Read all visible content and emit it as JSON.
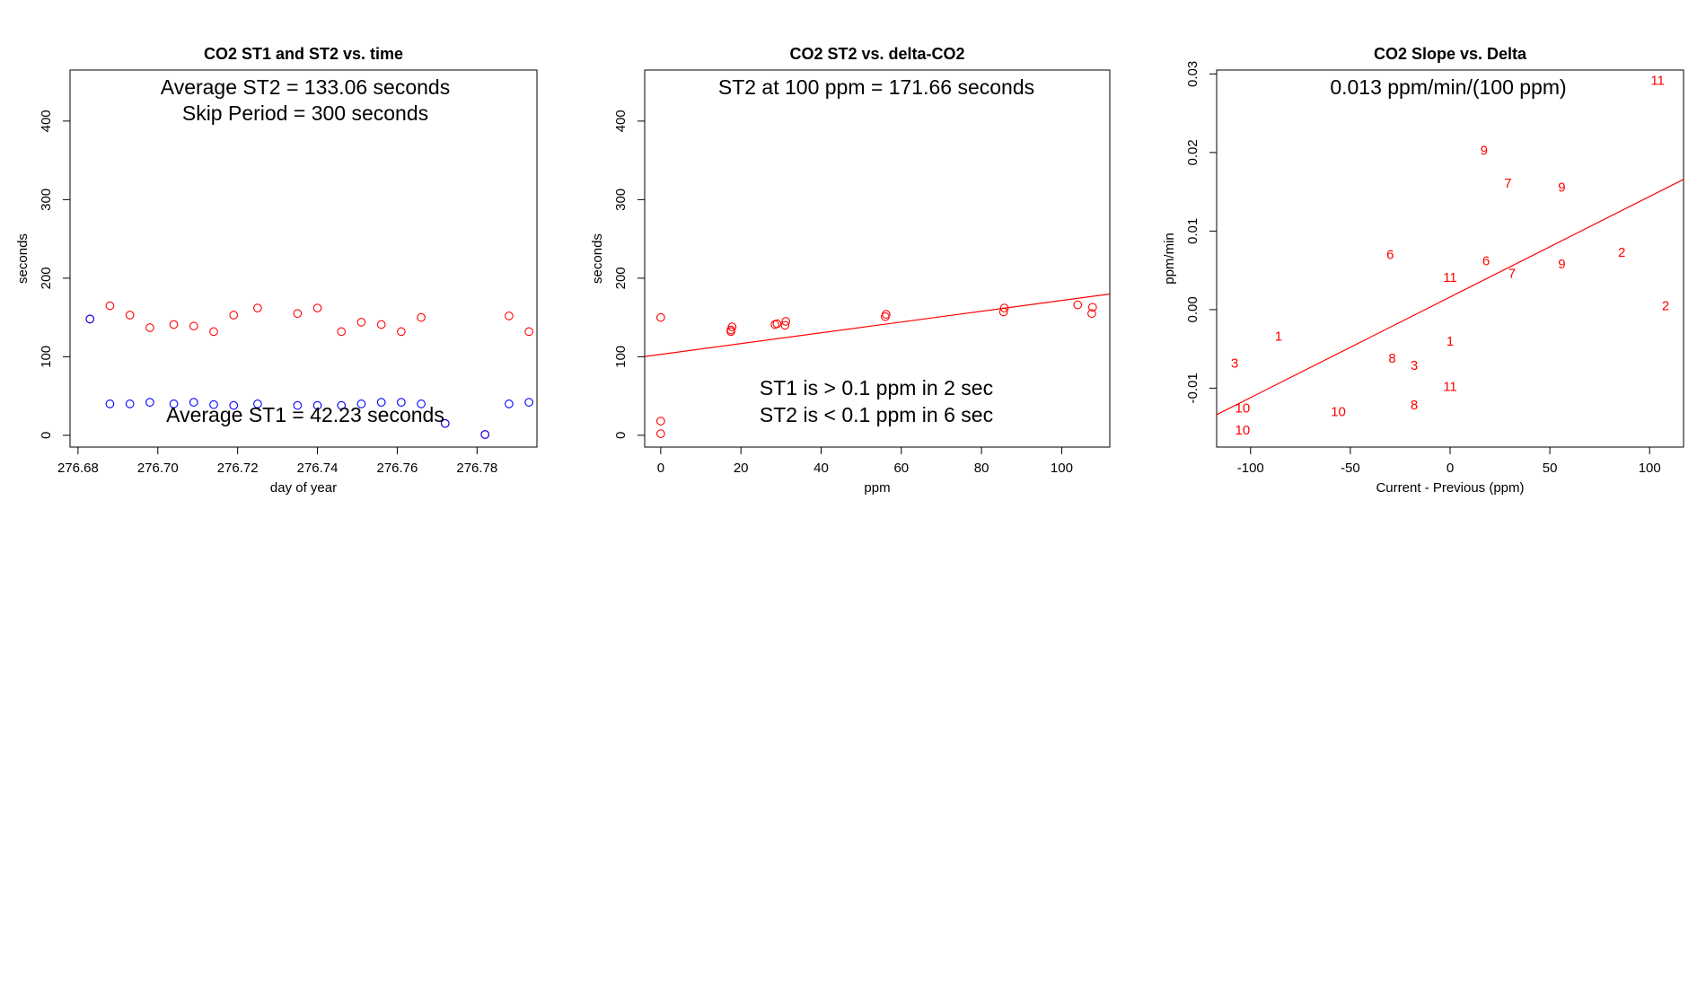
{
  "chart_data": [
    {
      "type": "scatter",
      "title": "CO2 ST1 and ST2 vs. time",
      "xlabel": "day of year",
      "ylabel": "seconds",
      "xlim": [
        276.678,
        276.795
      ],
      "ylim": [
        -15,
        465
      ],
      "xticks": [
        "276.68",
        "276.70",
        "276.72",
        "276.74",
        "276.76",
        "276.78"
      ],
      "yticks": [
        "0",
        "100",
        "200",
        "300",
        "400"
      ],
      "grid": false,
      "annotations": [
        "Average ST2 =  133.06  seconds",
        "Skip Period =  300  seconds",
        "Average ST1 =  42.23  seconds"
      ],
      "series": [
        {
          "color": "#ff0000",
          "x": [
            276.683,
            276.688,
            276.693,
            276.698,
            276.704,
            276.709,
            276.714,
            276.719,
            276.725,
            276.735,
            276.74,
            276.746,
            276.751,
            276.756,
            276.761,
            276.766,
            276.772,
            276.782,
            276.788,
            276.793
          ],
          "y": [
            148,
            165,
            153,
            137,
            141,
            139,
            132,
            153,
            162,
            155,
            162,
            132,
            144,
            141,
            132,
            150,
            15,
            1,
            152,
            132
          ]
        },
        {
          "color": "#0000ff",
          "x": [
            276.683,
            276.688,
            276.693,
            276.698,
            276.704,
            276.709,
            276.714,
            276.719,
            276.725,
            276.735,
            276.74,
            276.746,
            276.751,
            276.756,
            276.761,
            276.766,
            276.772,
            276.782,
            276.788,
            276.793
          ],
          "y": [
            148,
            40,
            40,
            42,
            40,
            42,
            39,
            38,
            40,
            38,
            38,
            38,
            40,
            42,
            42,
            40,
            15,
            1,
            40,
            42
          ]
        }
      ]
    },
    {
      "type": "scatter",
      "title": "CO2 ST2 vs. delta-CO2",
      "xlabel": "ppm",
      "ylabel": "seconds",
      "xlim": [
        -4,
        112
      ],
      "ylim": [
        -15,
        465
      ],
      "xticks": [
        "0",
        "20",
        "40",
        "60",
        "80",
        "100"
      ],
      "yticks": [
        "0",
        "100",
        "200",
        "300",
        "400"
      ],
      "grid": false,
      "annotations": [
        "ST2 at 100 ppm =  171.66  seconds",
        "ST1 is > 0.1 ppm in 2 sec",
        "ST2 is < 0.1 ppm in 6 sec"
      ],
      "series": [
        {
          "color": "#ff0000",
          "x": [
            0,
            0,
            0,
            17.5,
            17.5,
            17.8,
            28.5,
            29,
            31,
            31.2,
            56,
            56.2,
            85.5,
            85.7,
            104,
            107.5,
            107.7
          ],
          "y": [
            150,
            18,
            2,
            132,
            134,
            138,
            141,
            142,
            140,
            145,
            151,
            154,
            157,
            162,
            166,
            155,
            163
          ]
        }
      ],
      "fit_line": {
        "intercept": 103,
        "slope": 0.6866,
        "color": "#ff0000"
      }
    },
    {
      "type": "scatter",
      "title": "CO2 Slope vs. Delta",
      "xlabel": "Current - Previous (ppm)",
      "ylabel": "ppm/min",
      "xlim": [
        -117,
        117
      ],
      "ylim": [
        -0.0175,
        0.0305
      ],
      "xticks": [
        "-100",
        "-50",
        "0",
        "50",
        "100"
      ],
      "yticks": [
        "-0.01",
        "0.00",
        "0.01",
        "0.02",
        "0.03"
      ],
      "grid": false,
      "annotations": [
        "0.013  ppm/min/(100 ppm)"
      ],
      "series": [
        {
          "color": "#ff0000",
          "x": [
            -108,
            -86,
            -104,
            -104,
            -56,
            -30,
            -29,
            -18,
            -18,
            0,
            0,
            0,
            17,
            18,
            29,
            31,
            56,
            56,
            86,
            104,
            108
          ],
          "y": [
            -0.0068,
            -0.0034,
            -0.0125,
            -0.0153,
            -0.013,
            0.007,
            -0.0062,
            -0.0071,
            -0.0121,
            0.0041,
            -0.004,
            -0.0098,
            0.0203,
            0.0062,
            0.0161,
            0.0046,
            0.0156,
            0.0058,
            0.0073,
            0.0292,
            0.0005
          ],
          "labels": [
            "3",
            "1",
            "10",
            "10",
            "10",
            "6",
            "8",
            "3",
            "8",
            "11",
            "1",
            "11",
            "9",
            "6",
            "7",
            "7",
            "9",
            "9",
            "2",
            "11",
            "2"
          ]
        }
      ],
      "fit_line": {
        "intercept": 0.0016,
        "slope": 0.000128,
        "color": "#ff0000"
      }
    }
  ]
}
